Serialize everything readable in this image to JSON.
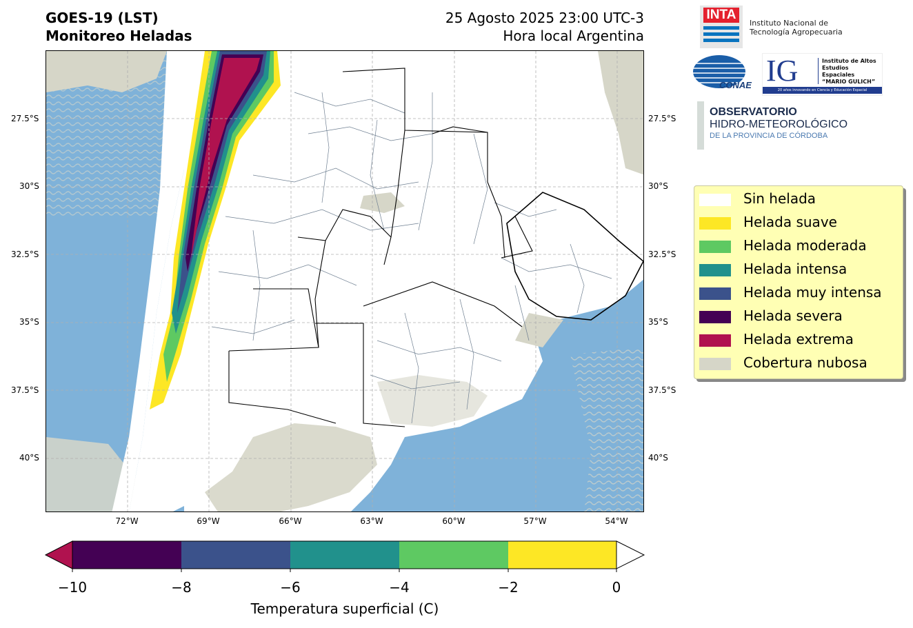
{
  "header": {
    "title_line1": "GOES-19 (LST)",
    "title_line2": "Monitoreo Heladas",
    "date_line": "25 Agosto 2025 23:00 UTC-3",
    "time_note": "Hora local Argentina"
  },
  "map": {
    "lat_labels": [
      "27.5°S",
      "30°S",
      "32.5°S",
      "35°S",
      "37.5°S",
      "40°S"
    ],
    "lon_labels": [
      "72°W",
      "69°W",
      "66°W",
      "63°W",
      "60°W",
      "57°W",
      "54°W"
    ],
    "extent": {
      "lon_min": -75.0,
      "lon_max": -53.0,
      "lat_max": -25.5,
      "lat_min": -42.5
    },
    "colors": {
      "ocean": "#7fb2d9",
      "cloud": "#d6d6c8",
      "land": "#ffffff",
      "province_border": "#000000",
      "department_border": "#6e7f91",
      "gridline": "#b0b0b0"
    }
  },
  "colorbar": {
    "title": "Temperatura superficial (C)",
    "ticks": [
      "−10",
      "−8",
      "−6",
      "−4",
      "−2",
      "0"
    ],
    "segments": [
      "#440154",
      "#3b528b",
      "#21918c",
      "#5ec962",
      "#fde725"
    ],
    "under_color": "#b0124f",
    "over_color": "#ffffff"
  },
  "legend": {
    "items": [
      {
        "label": "Sin helada",
        "color": "#ffffff"
      },
      {
        "label": "Helada suave",
        "color": "#fde725"
      },
      {
        "label": "Helada moderada",
        "color": "#5ec962"
      },
      {
        "label": "Helada intensa",
        "color": "#21918c"
      },
      {
        "label": "Helada muy intensa",
        "color": "#3b528b"
      },
      {
        "label": "Helada severa",
        "color": "#440154"
      },
      {
        "label": "Helada extrema",
        "color": "#b0124f"
      },
      {
        "label": "Cobertura nubosa",
        "color": "#d6d6c8"
      }
    ]
  },
  "logos": {
    "inta_mark": "INTA",
    "inta_name_1": "Instituto Nacional de",
    "inta_name_2": "Tecnología Agropecuaria",
    "conae_mark": "CONAE",
    "ig_mark": "IG",
    "ig_name_1": "Instituto de Altos",
    "ig_name_2": "Estudios Espaciales",
    "ig_name_3": "“MARIO GULICH”",
    "ig_tagline": "20 años innovando en Ciencia y Educación Espacial",
    "obs_line1": "OBSERVATORIO",
    "obs_line2": "HIDRO-METEOROLÓGICO",
    "obs_line3": "DE LA PROVINCIA DE CÓRDOBA"
  }
}
